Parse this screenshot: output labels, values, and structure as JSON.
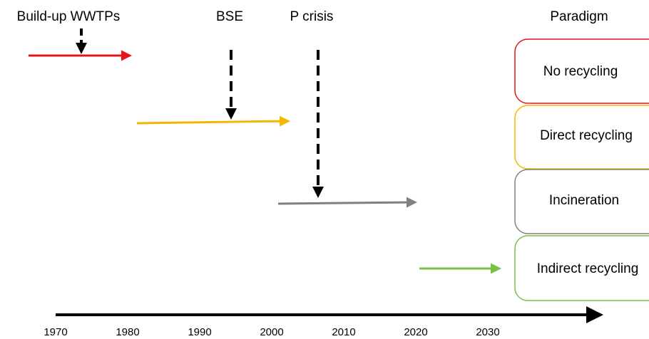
{
  "events": [
    {
      "label": "Build-up WWTPs"
    },
    {
      "label": "BSE"
    },
    {
      "label": "P crisis"
    }
  ],
  "paradigm": {
    "title": "Paradigm",
    "items": [
      {
        "label": "No recycling"
      },
      {
        "label": "Direct recycling"
      },
      {
        "label": "Incineration"
      },
      {
        "label": "Indirect recycling"
      }
    ]
  },
  "timeline": {
    "years": [
      "1970",
      "1980",
      "1990",
      "2000",
      "2010",
      "2020",
      "2030"
    ]
  }
}
